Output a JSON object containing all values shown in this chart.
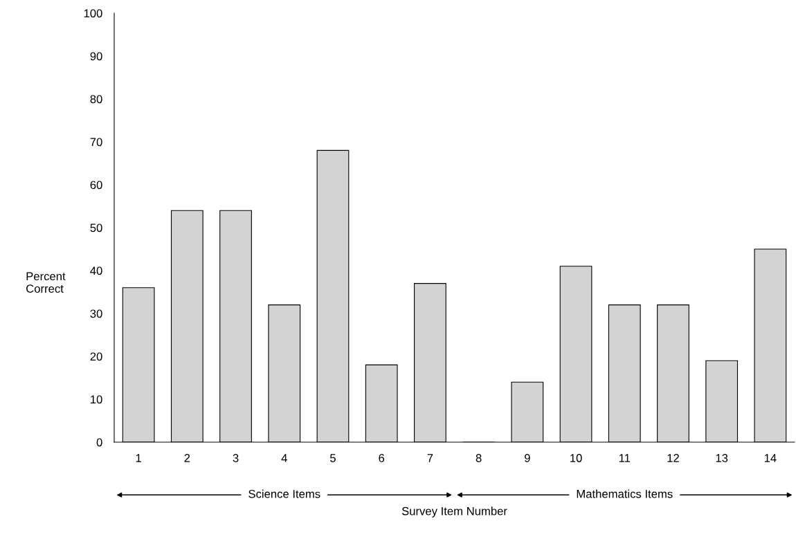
{
  "chart_data": {
    "type": "bar",
    "xlabel": "Survey Item Number",
    "ylabel": "Percent\nCorrect",
    "categories": [
      "1",
      "2",
      "3",
      "4",
      "5",
      "6",
      "7",
      "8",
      "9",
      "10",
      "11",
      "12",
      "13",
      "14"
    ],
    "values": [
      36,
      54,
      54,
      32,
      68,
      18,
      37,
      0,
      14,
      41,
      32,
      32,
      19,
      45
    ],
    "color": "#d3d3d3",
    "ylim": [
      0,
      100
    ],
    "yticks": [
      0,
      10,
      20,
      30,
      40,
      50,
      60,
      70,
      80,
      90,
      100
    ],
    "grid": false,
    "legend": false,
    "annotations": [
      "Science Items",
      "Mathematics Items"
    ]
  }
}
